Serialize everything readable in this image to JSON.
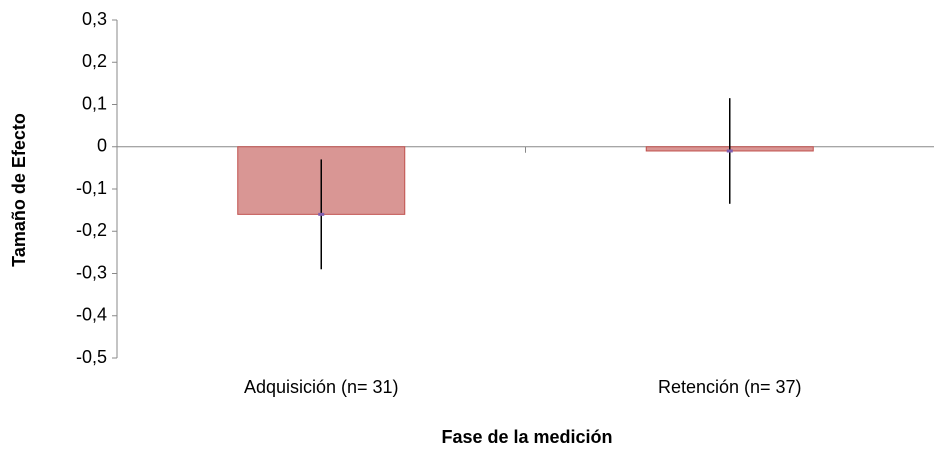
{
  "chart_data": {
    "type": "bar",
    "x_label": "Fase de la medición",
    "y_label": "Tamaño de Efecto",
    "categories": [
      "Adquisición (n= 31)",
      "Retención (n= 37)"
    ],
    "values": [
      -0.16,
      -0.01
    ],
    "errors": [
      0.13,
      0.125
    ],
    "color": "#d99694",
    "edge_color": "#c0504d",
    "ylim": [
      -0.5,
      0.3
    ],
    "yticks": [
      {
        "value": -0.5,
        "label": "-0,5"
      },
      {
        "value": -0.4,
        "label": "-0,4"
      },
      {
        "value": -0.3,
        "label": "-0,3"
      },
      {
        "value": -0.2,
        "label": "-0,2"
      },
      {
        "value": -0.1,
        "label": "-0,1"
      },
      0,
      {
        "value": 0.1,
        "label": "0,1"
      },
      {
        "value": 0.2,
        "label": "0,2"
      },
      {
        "value": 0.3,
        "label": "0,3"
      }
    ],
    "grid": false
  }
}
